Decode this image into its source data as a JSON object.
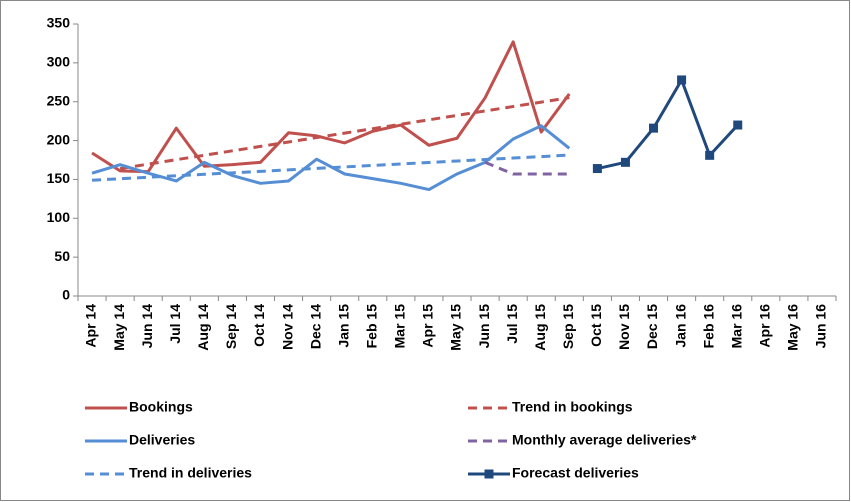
{
  "chart_data": {
    "type": "line",
    "categories": [
      "Apr 14",
      "May 14",
      "Jun 14",
      "Jul 14",
      "Aug 14",
      "Sep 14",
      "Oct 14",
      "Nov 14",
      "Dec 14",
      "Jan 15",
      "Feb 15",
      "Mar 15",
      "Apr 15",
      "May 15",
      "Jun 15",
      "Jul 15",
      "Aug 15",
      "Sep 15",
      "Oct 15",
      "Nov 15",
      "Dec 15",
      "Jan 16",
      "Feb 16",
      "Mar 16",
      "Apr 16",
      "May 16",
      "Jun 16"
    ],
    "series": [
      {
        "name": "Bookings",
        "color": "#c0504d",
        "dash": false,
        "values": [
          184,
          161,
          160,
          216,
          167,
          169,
          172,
          210,
          206,
          197,
          212,
          220,
          194,
          203,
          255,
          327,
          211,
          260,
          null,
          null,
          null,
          null,
          null,
          null,
          null,
          null,
          null
        ]
      },
      {
        "name": "Trend in bookings",
        "color": "#c0504d",
        "dash": true,
        "values": [
          null,
          164,
          169.7,
          175.4,
          181.1,
          186.8,
          192.5,
          198.2,
          203.9,
          209.6,
          215.3,
          221,
          226.7,
          232.4,
          238.1,
          243.8,
          249.5,
          255.2,
          null,
          null,
          null,
          null,
          null,
          null,
          null,
          null,
          null
        ]
      },
      {
        "name": "Deliveries",
        "color": "#558ed5",
        "dash": false,
        "values": [
          158,
          169,
          158,
          148,
          172,
          155,
          145,
          148,
          176,
          157,
          151,
          145,
          137,
          157,
          172,
          202,
          219,
          190,
          null,
          null,
          null,
          null,
          null,
          null,
          null,
          null,
          null
        ]
      },
      {
        "name": "Monthly average deliveries*",
        "color": "#8064a2",
        "dash": true,
        "values": [
          null,
          null,
          null,
          null,
          null,
          null,
          null,
          null,
          null,
          null,
          null,
          null,
          null,
          null,
          172,
          157,
          157,
          157,
          null,
          null,
          null,
          null,
          null,
          null,
          null,
          null,
          null
        ]
      },
      {
        "name": "Trend in deliveries",
        "color": "#558ed5",
        "dash": true,
        "values": [
          149,
          150.9,
          152.8,
          154.7,
          156.6,
          158.5,
          160.4,
          162.3,
          164.2,
          166.1,
          168,
          169.9,
          171.8,
          173.7,
          175.6,
          177.5,
          179.4,
          181.3,
          null,
          null,
          null,
          null,
          null,
          null,
          null,
          null,
          null
        ]
      },
      {
        "name": "Forecast deliveries",
        "color": "#1f497d",
        "dash": false,
        "marker": "square",
        "values": [
          null,
          null,
          null,
          null,
          null,
          null,
          null,
          null,
          null,
          null,
          null,
          null,
          null,
          null,
          null,
          null,
          null,
          null,
          164,
          172,
          216,
          278,
          181,
          220,
          null,
          null,
          null
        ]
      }
    ],
    "ylim": [
      0,
      350
    ],
    "yticks": [
      0,
      50,
      100,
      150,
      200,
      250,
      300,
      350
    ],
    "grid": false
  }
}
